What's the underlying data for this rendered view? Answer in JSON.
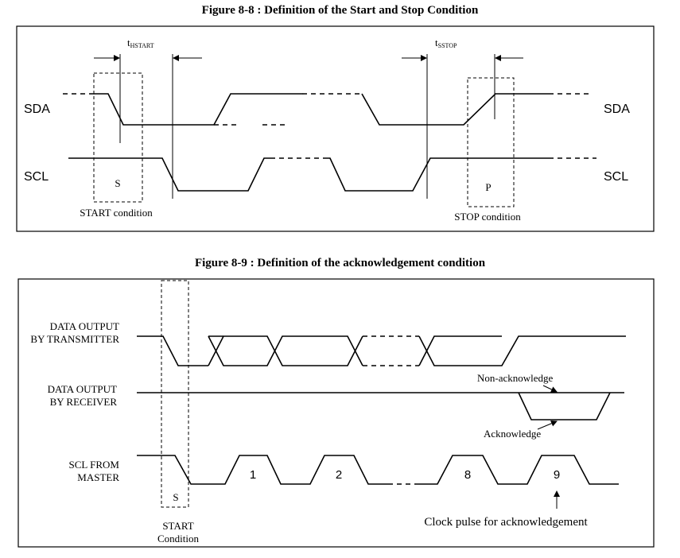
{
  "figure1": {
    "title": "Figure 8-8 : Definition of the Start and Stop Condition",
    "t_hstart": {
      "main": "t",
      "sub": "HSTART"
    },
    "t_sstop": {
      "main": "t",
      "sub": "SSTOP"
    },
    "sda_left": "SDA",
    "sda_right": "SDA",
    "scl_left": "SCL",
    "scl_right": "SCL",
    "start_marker": "S",
    "stop_marker": "P",
    "start_caption": "START condition",
    "stop_caption": "STOP condition"
  },
  "figure2": {
    "title": "Figure 8-9 : Definition of the acknowledgement condition",
    "transmitter_label_1": "DATA OUTPUT",
    "transmitter_label_2": "BY TRANSMITTER",
    "receiver_label_1": "DATA OUTPUT",
    "receiver_label_2": "BY RECEIVER",
    "scl_label_1": "SCL FROM",
    "scl_label_2": "MASTER",
    "non_ack": "Non-acknowledge",
    "ack": "Acknowledge",
    "pulse_1": "1",
    "pulse_2": "2",
    "pulse_8": "8",
    "pulse_9": "9",
    "start_marker": "S",
    "start_caption_1": "START",
    "start_caption_2": "Condition",
    "clock_caption": "Clock pulse for acknowledgement"
  }
}
